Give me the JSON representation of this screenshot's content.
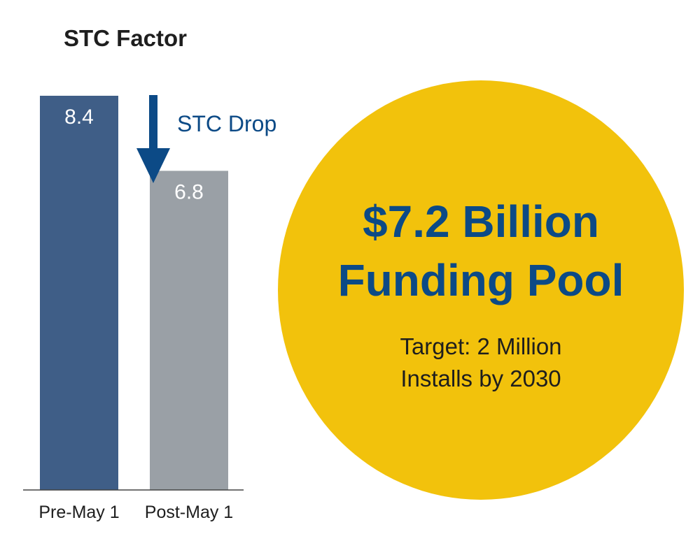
{
  "chart_data": [
    {
      "type": "bar",
      "title": "STC Factor",
      "categories": [
        "Pre-May 1",
        "Post-May 1"
      ],
      "values": [
        8.4,
        6.8
      ],
      "value_labels": [
        "8.4",
        "6.8"
      ],
      "bar_colors": [
        "#3f5e87",
        "#9aa0a6"
      ],
      "ylim": [
        0,
        8.4
      ],
      "grid": false,
      "annotation": {
        "text": "STC Drop",
        "icon": "arrow-down-icon",
        "color": "#0c4a86"
      }
    }
  ],
  "callout": {
    "headline_line1": "$7.2 Billion",
    "headline_line2": "Funding Pool",
    "sub_line1": "Target: 2 Million",
    "sub_line2": "Installs by 2030",
    "circle_color": "#f2c20c",
    "headline_color": "#0c4a86"
  }
}
